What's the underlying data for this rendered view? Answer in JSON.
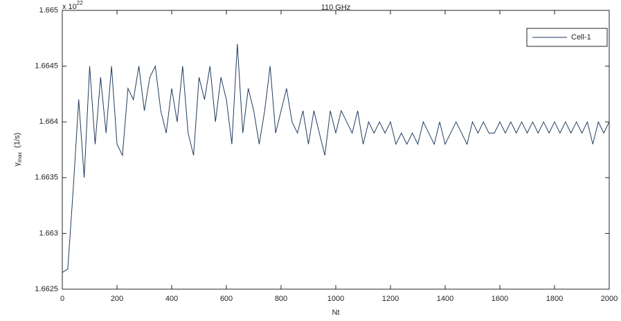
{
  "chart_data": {
    "type": "line",
    "title": "110 GHz",
    "x_label": "Nt",
    "y_label": {
      "symbol": "γ",
      "subscript": "max",
      "unit": "(1/s)"
    },
    "y_multiplier": {
      "base": "x 10",
      "exponent": "22"
    },
    "x": [
      0,
      20,
      40,
      60,
      80,
      100,
      120,
      140,
      160,
      180,
      200,
      220,
      240,
      260,
      280,
      300,
      320,
      340,
      360,
      380,
      400,
      420,
      440,
      460,
      480,
      500,
      520,
      540,
      560,
      580,
      600,
      620,
      640,
      660,
      680,
      700,
      720,
      740,
      760,
      780,
      800,
      820,
      840,
      860,
      880,
      900,
      920,
      940,
      960,
      980,
      1000,
      1020,
      1040,
      1060,
      1080,
      1100,
      1120,
      1140,
      1160,
      1180,
      1200,
      1220,
      1240,
      1260,
      1280,
      1300,
      1320,
      1340,
      1360,
      1380,
      1400,
      1420,
      1440,
      1460,
      1480,
      1500,
      1520,
      1540,
      1560,
      1580,
      1600,
      1620,
      1640,
      1660,
      1680,
      1700,
      1720,
      1740,
      1760,
      1780,
      1800,
      1820,
      1840,
      1860,
      1880,
      1900,
      1920,
      1940,
      1960,
      1980,
      2000
    ],
    "series": [
      {
        "name": "Cell-1",
        "color": "#1f3a5f",
        "values": [
          1.66265,
          1.66268,
          1.6634,
          1.6642,
          1.6635,
          1.6645,
          1.6638,
          1.6644,
          1.6639,
          1.6645,
          1.6638,
          1.6637,
          1.6643,
          1.6642,
          1.6645,
          1.6641,
          1.6644,
          1.6645,
          1.6641,
          1.6639,
          1.6643,
          1.664,
          1.6645,
          1.6639,
          1.6637,
          1.6644,
          1.6642,
          1.6645,
          1.664,
          1.6644,
          1.6642,
          1.6638,
          1.6647,
          1.6639,
          1.6643,
          1.6641,
          1.6638,
          1.6641,
          1.6645,
          1.6639,
          1.6641,
          1.6643,
          1.664,
          1.6639,
          1.6641,
          1.6638,
          1.6641,
          1.6639,
          1.6637,
          1.6641,
          1.6639,
          1.6641,
          1.664,
          1.6639,
          1.6641,
          1.6638,
          1.664,
          1.6639,
          1.664,
          1.6639,
          1.664,
          1.6638,
          1.6639,
          1.6638,
          1.6639,
          1.6638,
          1.664,
          1.6639,
          1.6638,
          1.664,
          1.6638,
          1.6639,
          1.664,
          1.6639,
          1.6638,
          1.664,
          1.6639,
          1.664,
          1.6639,
          1.6639,
          1.664,
          1.6639,
          1.664,
          1.6639,
          1.664,
          1.6639,
          1.664,
          1.6639,
          1.664,
          1.6639,
          1.664,
          1.6639,
          1.664,
          1.6639,
          1.664,
          1.6639,
          1.664,
          1.6638,
          1.664,
          1.6639,
          1.664
        ]
      }
    ],
    "xlim": [
      0,
      2000
    ],
    "xticks": [
      0,
      200,
      400,
      600,
      800,
      1000,
      1200,
      1400,
      1600,
      1800,
      2000
    ],
    "ylim": [
      1.6625,
      1.665
    ],
    "yticks": [
      1.6625,
      1.663,
      1.6635,
      1.664,
      1.6645,
      1.665
    ],
    "grid": false,
    "legend": "northeast"
  }
}
